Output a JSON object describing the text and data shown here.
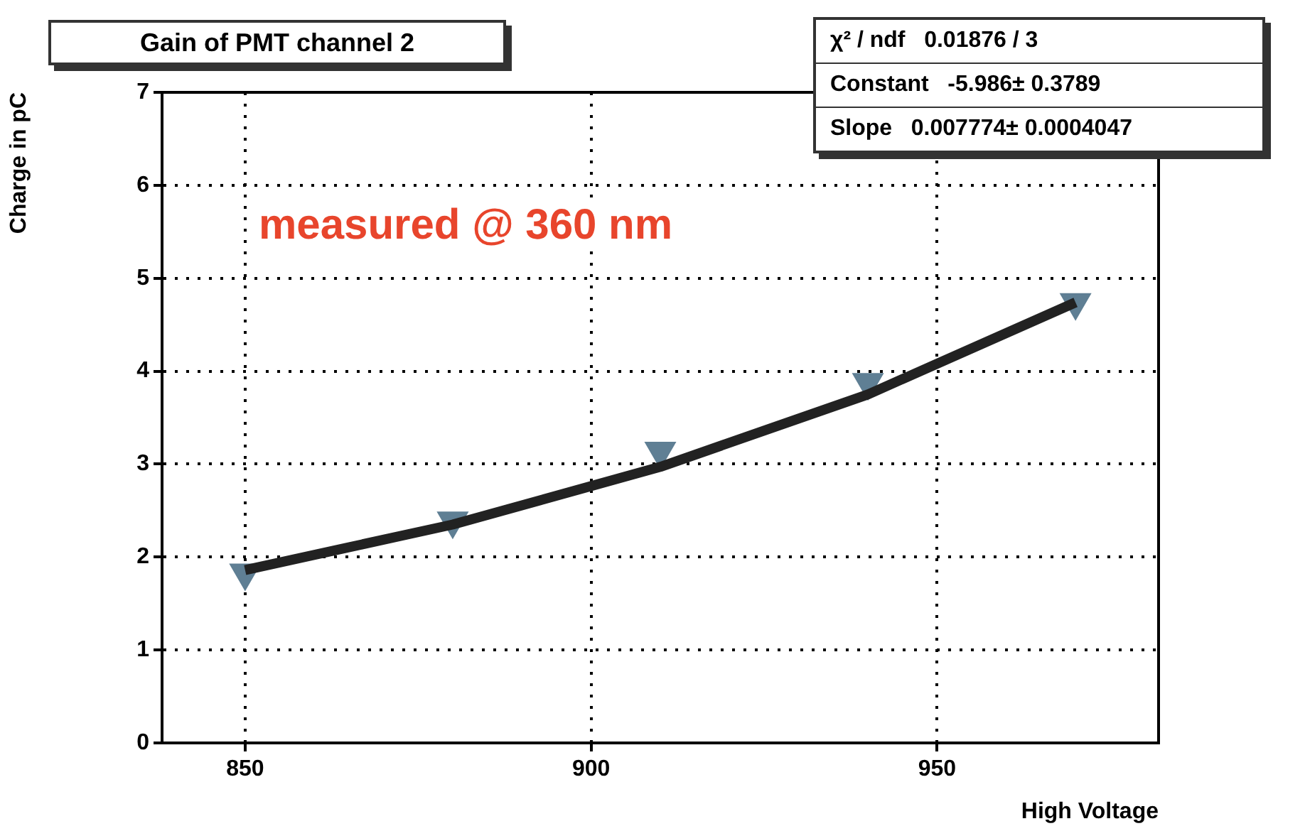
{
  "chart_data": {
    "type": "scatter",
    "title": "Gain of PMT channel 2",
    "xlabel": "High Voltage",
    "ylabel": "Charge in pC",
    "x": [
      850,
      880,
      910,
      940,
      970
    ],
    "series": [
      {
        "color": "#5f7f94",
        "values": [
          1.83,
          2.39,
          3.14,
          3.88,
          4.74
        ],
        "marker": "triangle"
      },
      {
        "type": "line",
        "color": "#222222",
        "x": [
          850,
          880,
          910,
          940,
          970
        ],
        "values": [
          1.86,
          2.35,
          2.97,
          3.75,
          4.74
        ],
        "marker": "none"
      }
    ],
    "xlim": [
      838,
      982
    ],
    "xticks": [
      850,
      900,
      950
    ],
    "ylim": [
      0,
      7
    ],
    "yticks": [
      0,
      1,
      2,
      3,
      4,
      5,
      6,
      7
    ],
    "grid": true,
    "legend": false,
    "annotations": [
      "measured @ 360 nm",
      "χ² / ndf   0.01876 / 3",
      "Constant   -5.986± 0.3789",
      "Slope   0.007774± 0.0004047"
    ]
  }
}
